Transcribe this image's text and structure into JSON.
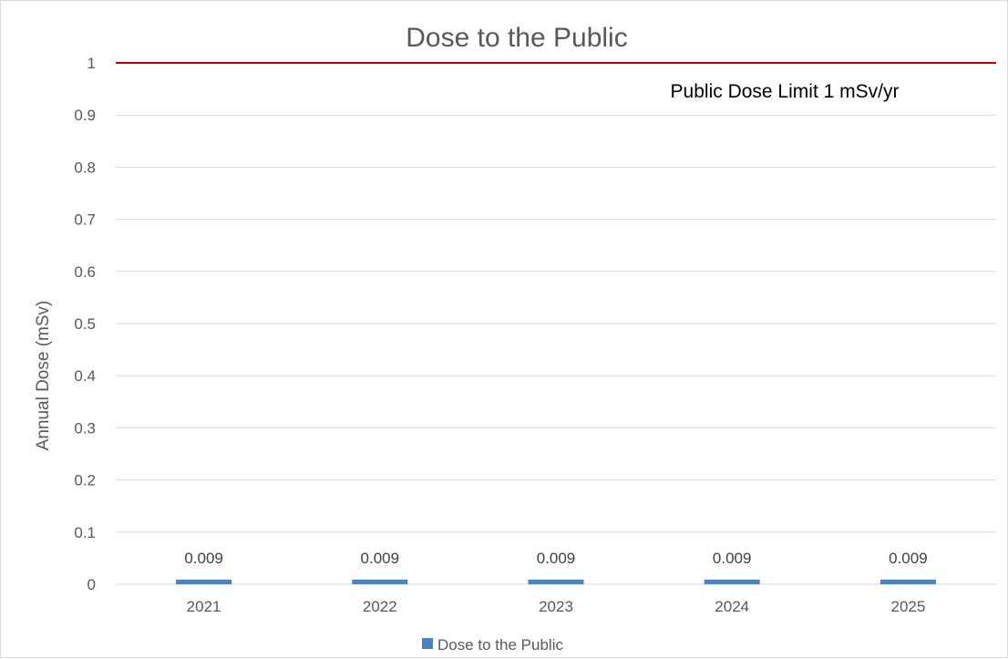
{
  "chart_data": {
    "type": "bar",
    "title": "Dose to the Public",
    "xlabel": "",
    "ylabel": "Annual Dose (mSv)",
    "categories": [
      "2021",
      "2022",
      "2023",
      "2024",
      "2025"
    ],
    "series": [
      {
        "name": "Dose to the Public",
        "values": [
          0.009,
          0.009,
          0.009,
          0.009,
          0.009
        ],
        "data_labels": [
          "0.009",
          "0.009",
          "0.009",
          "0.009",
          "0.009"
        ],
        "color": "#4f81bd"
      }
    ],
    "ylim": [
      0,
      1
    ],
    "yticks": [
      "0",
      "0.1",
      "0.2",
      "0.3",
      "0.4",
      "0.5",
      "0.6",
      "0.7",
      "0.8",
      "0.9",
      "1"
    ],
    "grid": true,
    "reference_line": {
      "value": 1,
      "label": "Public Dose Limit 1 mSv/yr",
      "color": "#c00000"
    },
    "legend_position": "bottom",
    "colors": {
      "gridline": "#d9d9d9",
      "axis_text": "#595959"
    }
  }
}
